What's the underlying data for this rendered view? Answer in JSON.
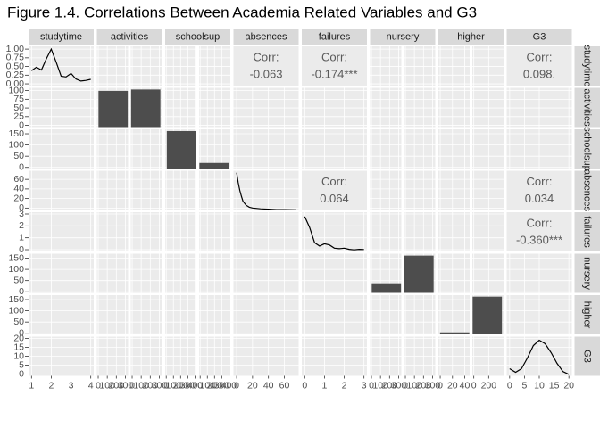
{
  "chart_data": {
    "type": "pairs",
    "title": "Figure 1.4. Correlations Between Academia Related Variables and G3",
    "variables": [
      "studytime",
      "activities",
      "schoolsup",
      "absences",
      "failures",
      "nursery",
      "higher",
      "G3"
    ],
    "corr_title": "Corr:",
    "correlations": [
      [
        null,
        null,
        null,
        -0.063,
        -0.174,
        null,
        null,
        0.098
      ],
      [
        null,
        null,
        null,
        null,
        null,
        null,
        null,
        null
      ],
      [
        null,
        null,
        null,
        null,
        null,
        null,
        null,
        null
      ],
      [
        null,
        null,
        null,
        null,
        0.064,
        null,
        null,
        0.034
      ],
      [
        null,
        null,
        null,
        null,
        null,
        null,
        null,
        -0.36
      ],
      [
        null,
        null,
        null,
        null,
        null,
        null,
        null,
        null
      ],
      [
        null,
        null,
        null,
        null,
        null,
        null,
        null,
        null
      ],
      [
        null,
        null,
        null,
        null,
        null,
        null,
        null,
        null
      ]
    ],
    "correlation_labels": [
      [
        null,
        null,
        null,
        "-0.063",
        "-0.174***",
        null,
        null,
        "0.098."
      ],
      [
        null,
        null,
        null,
        null,
        null,
        null,
        null,
        null
      ],
      [
        null,
        null,
        null,
        null,
        null,
        null,
        null,
        null
      ],
      [
        null,
        null,
        null,
        null,
        "0.064",
        null,
        null,
        "0.034"
      ],
      [
        null,
        null,
        null,
        null,
        null,
        null,
        null,
        "-0.360***"
      ],
      [
        null,
        null,
        null,
        null,
        null,
        null,
        null,
        null
      ],
      [
        null,
        null,
        null,
        null,
        null,
        null,
        null,
        null
      ],
      [
        null,
        null,
        null,
        null,
        null,
        null,
        null,
        null
      ]
    ],
    "y_axes": [
      {
        "ylim": [
          -0.05,
          1.08
        ],
        "yticks": [
          {
            "value": 0,
            "label": "0.00"
          },
          {
            "value": 0.25,
            "label": "0.25"
          },
          {
            "value": 0.5,
            "label": "0.50"
          },
          {
            "value": 0.75,
            "label": "0.75"
          },
          {
            "value": 1,
            "label": "1.00"
          }
        ]
      },
      {
        "ylim": [
          -5,
          108
        ],
        "yticks": [
          0,
          25,
          50,
          75,
          100
        ]
      },
      {
        "ylim": [
          -5,
          170
        ],
        "yticks": [
          0,
          50,
          100,
          150
        ]
      },
      {
        "ylim": [
          -4,
          78
        ],
        "yticks": [
          0,
          20,
          40,
          60
        ]
      },
      {
        "ylim": [
          -0.15,
          3.15
        ],
        "yticks": [
          0,
          1,
          2,
          3
        ]
      },
      {
        "ylim": [
          -5,
          170
        ],
        "yticks": [
          0,
          50,
          100,
          150
        ]
      },
      {
        "ylim": [
          -5,
          170
        ],
        "yticks": [
          0,
          50,
          100,
          150
        ]
      },
      {
        "ylim": [
          -1,
          21
        ],
        "yticks": [
          0,
          5,
          10,
          15,
          20
        ]
      }
    ],
    "x_axes": [
      [
        {
          "xlim": [
            0.85,
            4.15
          ],
          "xticks": [
            1,
            2,
            3,
            4
          ]
        }
      ],
      [
        {
          "xlim": [
            -15,
            330
          ],
          "xticks": [
            0,
            100,
            200,
            300
          ]
        },
        {
          "xlim": [
            -15,
            330
          ],
          "xticks": [
            0,
            100,
            200,
            300
          ]
        }
      ],
      [
        {
          "xlim": [
            -15,
            420
          ],
          "xticks": [
            0,
            100,
            200,
            300,
            400
          ]
        },
        {
          "xlim": [
            -15,
            420
          ],
          "xticks": [
            0,
            100,
            200,
            300,
            400
          ]
        }
      ],
      [
        {
          "xlim": [
            -4,
            78
          ],
          "xticks": [
            0,
            20,
            40,
            60
          ]
        }
      ],
      [
        {
          "xlim": [
            -0.15,
            3.15
          ],
          "xticks": [
            0,
            1,
            2,
            3
          ]
        }
      ],
      [
        {
          "xlim": [
            -15,
            330
          ],
          "xticks": [
            0,
            100,
            200,
            300
          ]
        },
        {
          "xlim": [
            -15,
            330
          ],
          "xticks": [
            0,
            100,
            200,
            300
          ]
        }
      ],
      [
        {
          "xlim": [
            -3,
            48
          ],
          "xticks": [
            0,
            20,
            40
          ]
        },
        {
          "xlim": [
            -20,
            400
          ],
          "xticks": [
            0,
            200
          ]
        }
      ],
      [
        {
          "xlim": [
            -1,
            21
          ],
          "xticks": [
            0,
            5,
            10,
            15,
            20
          ]
        }
      ]
    ],
    "diagonal": [
      {
        "kind": "density",
        "x": [
          1,
          1.25,
          1.5,
          1.75,
          2,
          2.25,
          2.5,
          2.75,
          3,
          3.25,
          3.5,
          3.75,
          4
        ],
        "y": [
          0.38,
          0.48,
          0.4,
          0.72,
          1.0,
          0.62,
          0.22,
          0.2,
          0.3,
          0.14,
          0.08,
          0.1,
          0.13
        ]
      },
      {
        "kind": "bar",
        "ylim": [
          0,
          210
        ],
        "values": [
          194,
          201
        ]
      },
      {
        "kind": "bar",
        "ylim": [
          0,
          360
        ],
        "values": [
          344,
          51
        ]
      },
      {
        "kind": "density",
        "ylim": [
          0,
          0.1
        ],
        "x": [
          0,
          2,
          4,
          6,
          8,
          12,
          16,
          20,
          30,
          40,
          50,
          60,
          75
        ],
        "y": [
          0.095,
          0.07,
          0.05,
          0.035,
          0.022,
          0.012,
          0.007,
          0.005,
          0.003,
          0.002,
          0.001,
          0.001,
          0.0005
        ]
      },
      {
        "kind": "density",
        "ylim": [
          0,
          3.6
        ],
        "x": [
          0,
          0.25,
          0.5,
          0.75,
          1,
          1.25,
          1.5,
          1.75,
          2,
          2.25,
          2.5,
          2.75,
          3
        ],
        "y": [
          3.2,
          2.2,
          0.8,
          0.5,
          0.7,
          0.6,
          0.3,
          0.25,
          0.3,
          0.2,
          0.15,
          0.2,
          0.18
        ]
      },
      {
        "kind": "bar",
        "ylim": [
          0,
          330
        ],
        "values": [
          81,
          314
        ]
      },
      {
        "kind": "bar",
        "ylim": [
          0,
          390
        ],
        "values": [
          20,
          375
        ]
      },
      {
        "kind": "density",
        "ylim": [
          0,
          0.11
        ],
        "x": [
          0,
          2,
          4,
          6,
          8,
          10,
          12,
          14,
          16,
          18,
          20
        ],
        "y": [
          0.02,
          0.01,
          0.02,
          0.05,
          0.085,
          0.1,
          0.09,
          0.065,
          0.035,
          0.012,
          0.004
        ]
      }
    ],
    "grid": true
  }
}
